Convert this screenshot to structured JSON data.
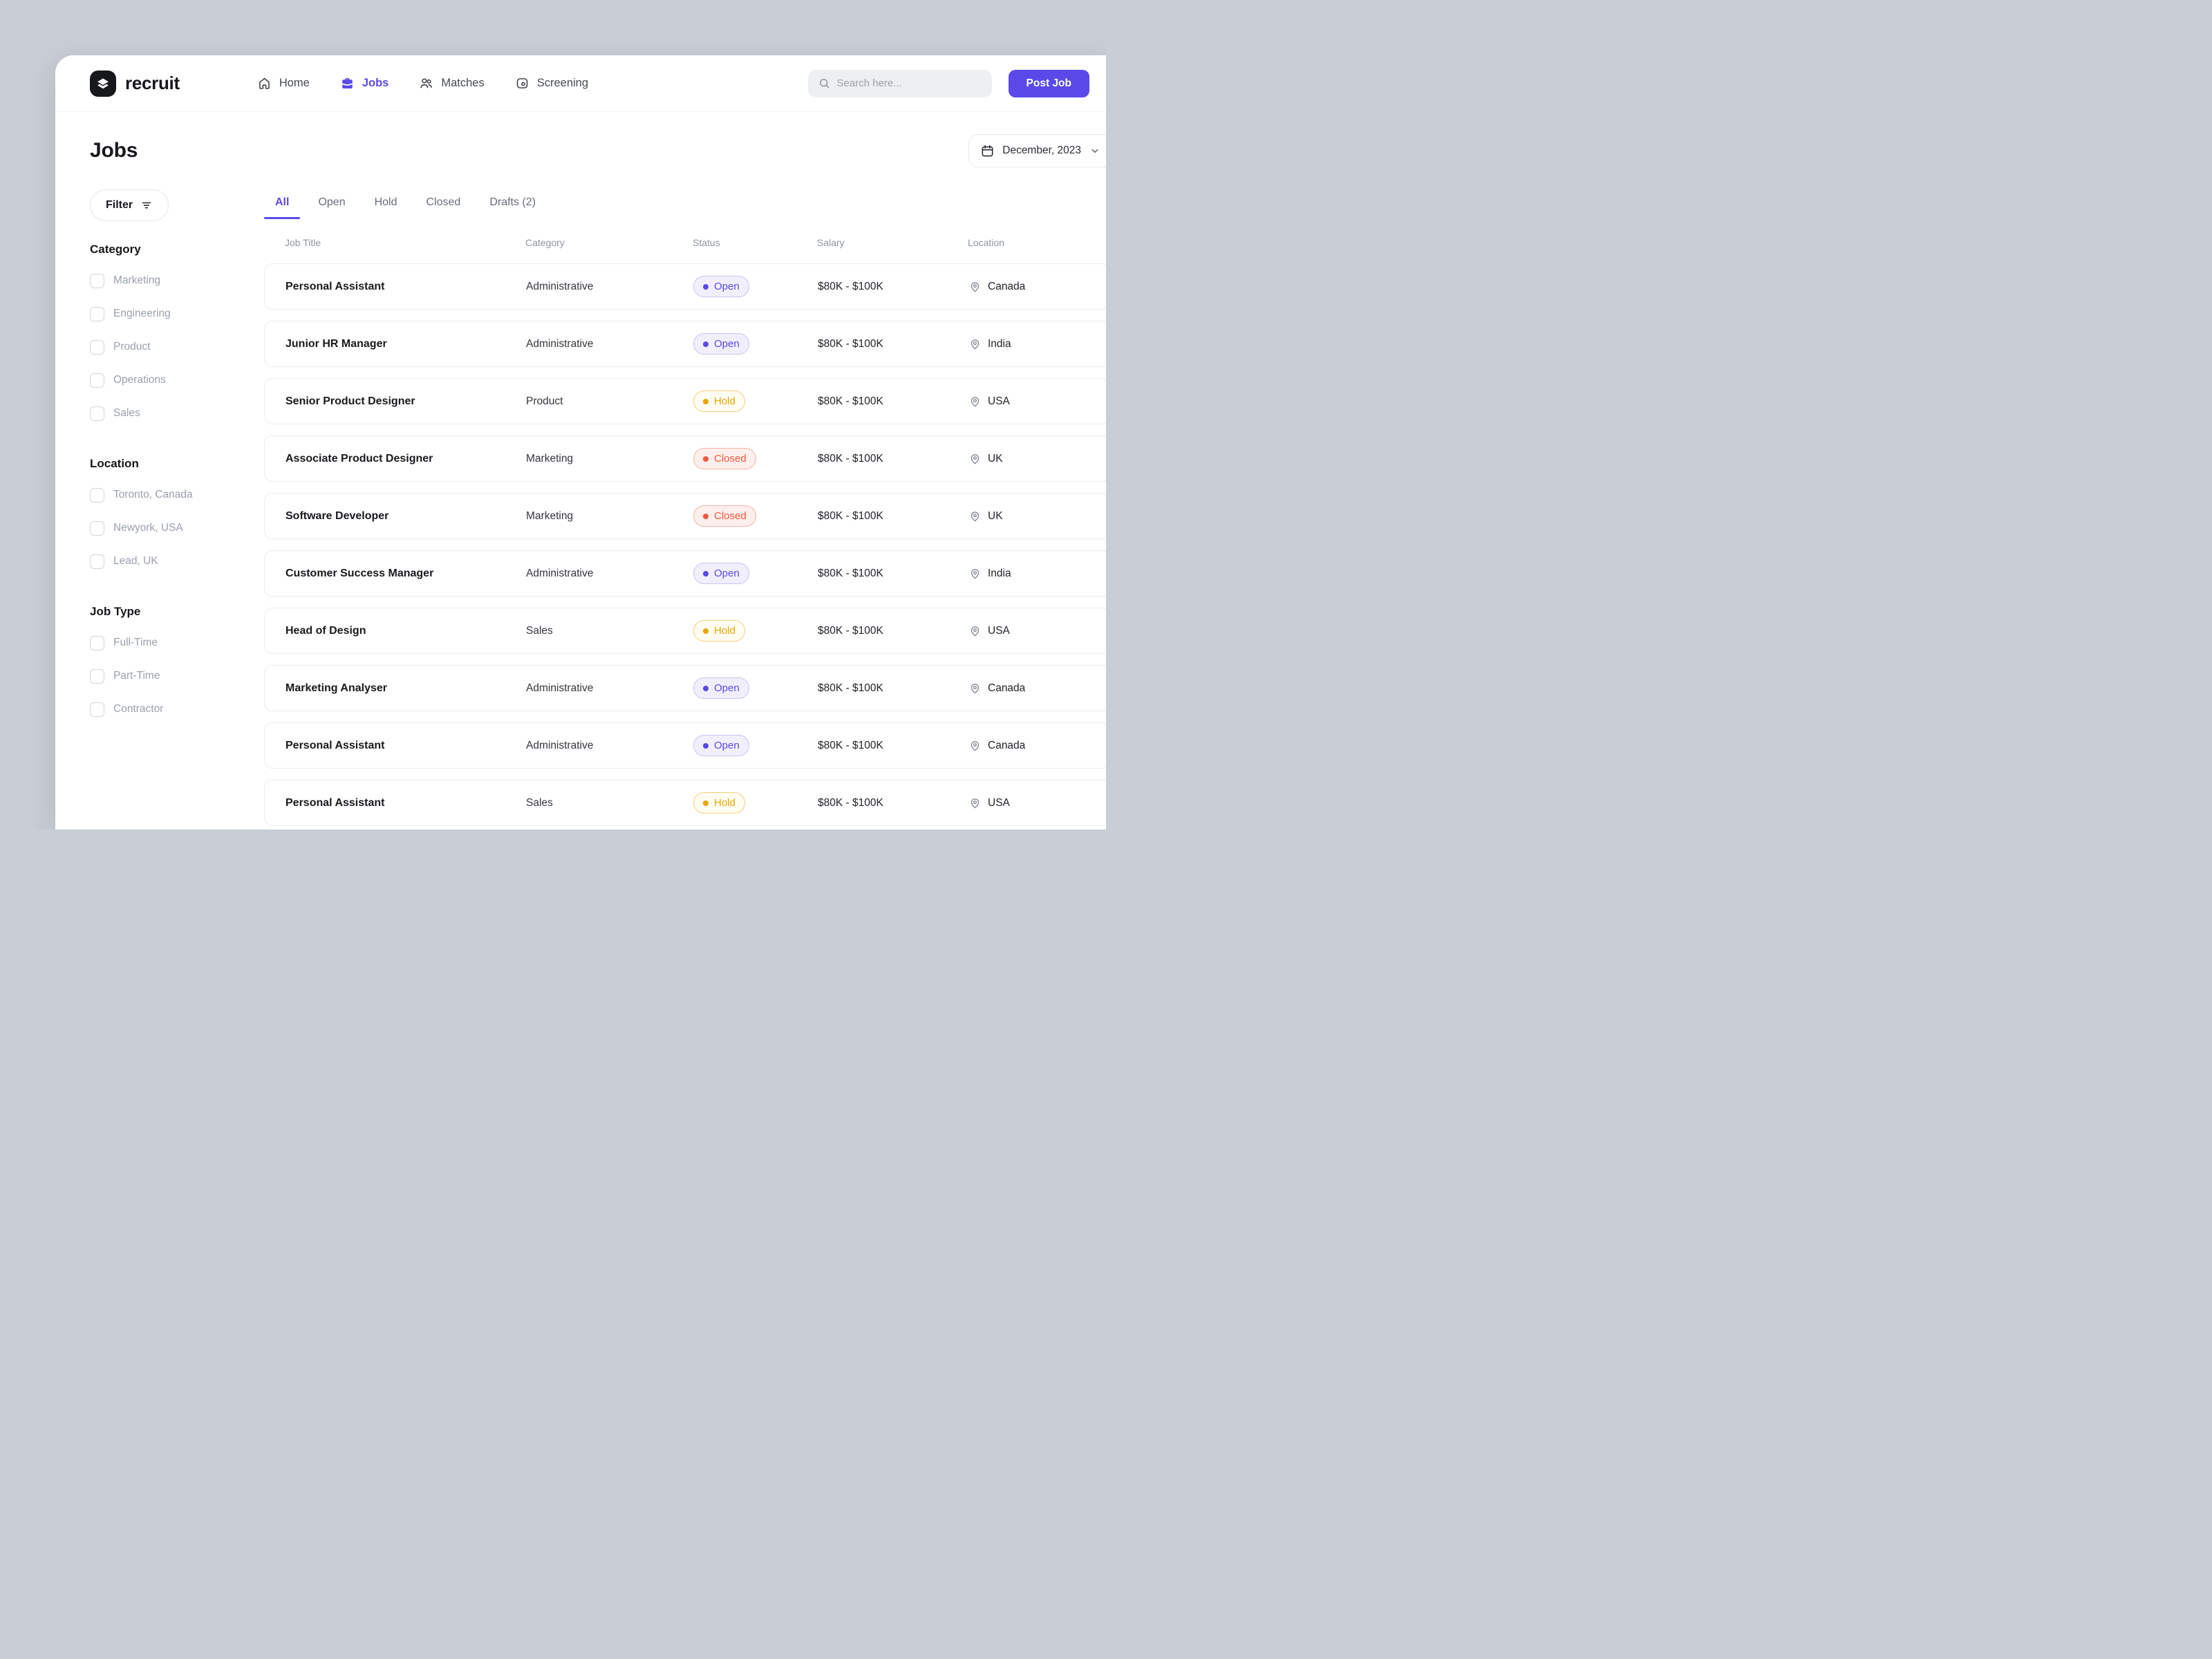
{
  "brand": {
    "name": "recruit",
    "logo_icon": "layers-icon"
  },
  "header": {
    "nav": [
      {
        "label": "Home",
        "icon": "home-icon",
        "active": false
      },
      {
        "label": "Jobs",
        "icon": "briefcase-icon",
        "active": true
      },
      {
        "label": "Matches",
        "icon": "people-icon",
        "active": false
      },
      {
        "label": "Screening",
        "icon": "screening-icon",
        "active": false
      }
    ],
    "search_placeholder": "Search here...",
    "post_job_label": "Post Job"
  },
  "page": {
    "title": "Jobs",
    "date_selector": "December, 2023"
  },
  "sidebar": {
    "filter_label": "Filter",
    "groups": [
      {
        "title": "Category",
        "options": [
          "Marketing",
          "Engineering",
          "Product",
          "Operations",
          "Sales"
        ]
      },
      {
        "title": "Location",
        "options": [
          "Toronto, Canada",
          "Newyork, USA",
          "Lead, UK"
        ]
      },
      {
        "title": "Job Type",
        "options": [
          "Full-Time",
          "Part-Time",
          "Contractor"
        ]
      }
    ]
  },
  "tabs": [
    {
      "label": "All",
      "active": true
    },
    {
      "label": "Open",
      "active": false
    },
    {
      "label": "Hold",
      "active": false
    },
    {
      "label": "Closed",
      "active": false
    },
    {
      "label": "Drafts (2)",
      "active": false
    }
  ],
  "table": {
    "columns": [
      "Job Title",
      "Category",
      "Status",
      "Salary",
      "Location"
    ],
    "rows": [
      {
        "title": "Personal Assistant",
        "category": "Administrative",
        "status": "Open",
        "salary": "$80K - $100K",
        "location": "Canada"
      },
      {
        "title": "Junior HR Manager",
        "category": "Administrative",
        "status": "Open",
        "salary": "$80K - $100K",
        "location": "India"
      },
      {
        "title": "Senior Product Designer",
        "category": "Product",
        "status": "Hold",
        "salary": "$80K - $100K",
        "location": "USA"
      },
      {
        "title": "Associate Product Designer",
        "category": "Marketing",
        "status": "Closed",
        "salary": "$80K - $100K",
        "location": "UK"
      },
      {
        "title": "Software Developer",
        "category": "Marketing",
        "status": "Closed",
        "salary": "$80K - $100K",
        "location": "UK"
      },
      {
        "title": "Customer Success Manager",
        "category": "Administrative",
        "status": "Open",
        "salary": "$80K - $100K",
        "location": "India"
      },
      {
        "title": "Head of Design",
        "category": "Sales",
        "status": "Hold",
        "salary": "$80K - $100K",
        "location": "USA"
      },
      {
        "title": "Marketing Analyser",
        "category": "Administrative",
        "status": "Open",
        "salary": "$80K - $100K",
        "location": "Canada"
      },
      {
        "title": "Personal Assistant",
        "category": "Administrative",
        "status": "Open",
        "salary": "$80K - $100K",
        "location": "Canada"
      },
      {
        "title": "Personal Assistant",
        "category": "Sales",
        "status": "Hold",
        "salary": "$80K - $100K",
        "location": "USA"
      }
    ]
  },
  "colors": {
    "accent": "#5a49e8",
    "canvas": "#c9cdd6",
    "status": {
      "Open": {
        "text": "#5a49e8",
        "bg": "#f1effd",
        "border": "#c9c2f4"
      },
      "Hold": {
        "text": "#e8a501",
        "bg": "#fffcf2",
        "border": "#f1d077"
      },
      "Closed": {
        "text": "#f2573c",
        "bg": "#fdefec",
        "border": "#f6b3a6"
      }
    }
  }
}
